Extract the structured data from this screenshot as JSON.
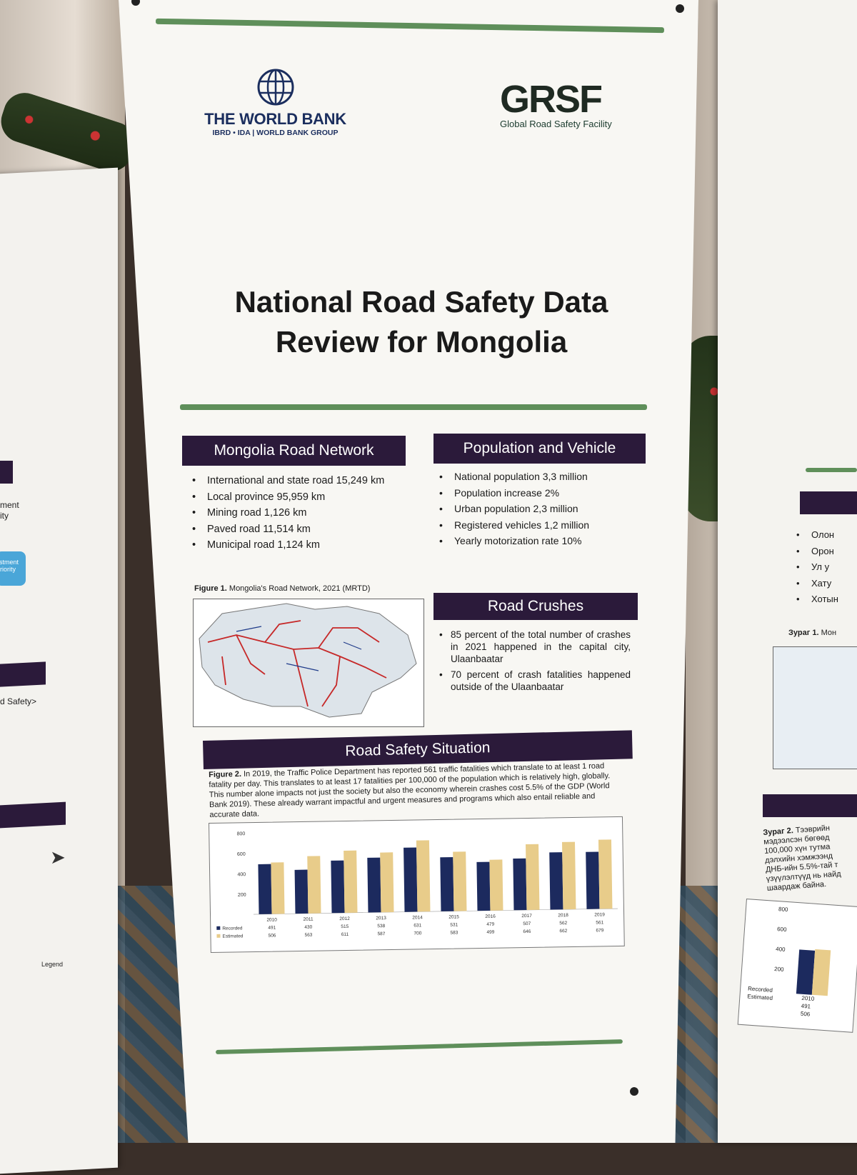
{
  "poster": {
    "title_line1": "National Road Safety Data",
    "title_line2": "Review for Mongolia",
    "wb_name": "THE WORLD BANK",
    "wb_sub": "IBRD • IDA | WORLD BANK GROUP",
    "grsf_mark": "GRSF",
    "grsf_sub": "Global Road Safety Facility"
  },
  "road_network": {
    "heading": "Mongolia Road Network",
    "items": [
      "International and state road 15,249 km",
      "Local province 95,959 km",
      "Mining road 1,126 km",
      "Paved road 11,514 km",
      "Municipal road 1,124 km"
    ]
  },
  "population": {
    "heading": "Population and Vehicle",
    "items": [
      "National population 3,3 million",
      "Population increase 2%",
      "Urban population 2,3 million",
      "Registered vehicles 1,2 million",
      "Yearly motorization rate 10%"
    ]
  },
  "figure1": {
    "label": "Figure 1.",
    "text": "Mongolia's Road Network, 2021 (MRTD)"
  },
  "road_crushes": {
    "heading": "Road Crushes",
    "items": [
      "85 percent of the total number of crashes in 2021 happened in the capital city, Ulaanbaatar",
      "70 percent of crash fatalities happened outside of the Ulaanbaatar"
    ]
  },
  "safety": {
    "heading": "Road Safety Situation",
    "fig_label": "Figure 2.",
    "fig_text": "In 2019, the Traffic Police Department has reported 561 traffic fatalities which translate to at least 1 road fatality per day. This translates to at least 17 fatalities per 100,000 of the population which is relatively high, globally. This number alone impacts not just the society but also the economy wherein crashes cost 5.5% of the GDP (World Bank 2019). These already warrant impactful and urgent measures and programs which also entail reliable and accurate data."
  },
  "right_banner": {
    "items": [
      "Олон",
      "Орон",
      "Ул у",
      "Хату",
      "Хотын"
    ],
    "fig_label": "Зураг 1.",
    "fig_label_rest": "Мон",
    "fig2_label": "Зураг 2.",
    "fig2_lines": [
      "Тээврийн",
      "мэдээлсэн бөгөөд",
      "100,000 хүн тутма",
      "дэлхийн хэмжээнд",
      "ДНБ-ийн 5.5%-тай т",
      "үзүүлэлтүүд нь найд",
      "шаардаж байна."
    ],
    "ticks": [
      "800",
      "600",
      "400",
      "200"
    ],
    "legend": [
      "Recorded",
      "Estimated"
    ],
    "year": "2010",
    "recorded": "491",
    "estimated": "506"
  },
  "left_banner": {
    "line1": "ment",
    "line2": "ity",
    "invest": "estment",
    "priority": "Priority",
    "safety": "d Safety>",
    "legend": "Legend"
  },
  "chart_data": {
    "type": "bar",
    "categories": [
      "2010",
      "2011",
      "2012",
      "2013",
      "2014",
      "2015",
      "2016",
      "2017",
      "2018",
      "2019"
    ],
    "series": [
      {
        "name": "Recorded",
        "values": [
          491,
          430,
          515,
          538,
          631,
          531,
          479,
          507,
          562,
          561
        ],
        "color": "#1c2a5e"
      },
      {
        "name": "Estimated",
        "values": [
          506,
          563,
          611,
          587,
          700,
          583,
          499,
          646,
          662,
          679
        ],
        "color": "#e8cc8a"
      }
    ],
    "yticks": [
      200,
      400,
      600,
      800
    ],
    "ylim": [
      0,
      800
    ],
    "legend_position": "bottom-left"
  }
}
